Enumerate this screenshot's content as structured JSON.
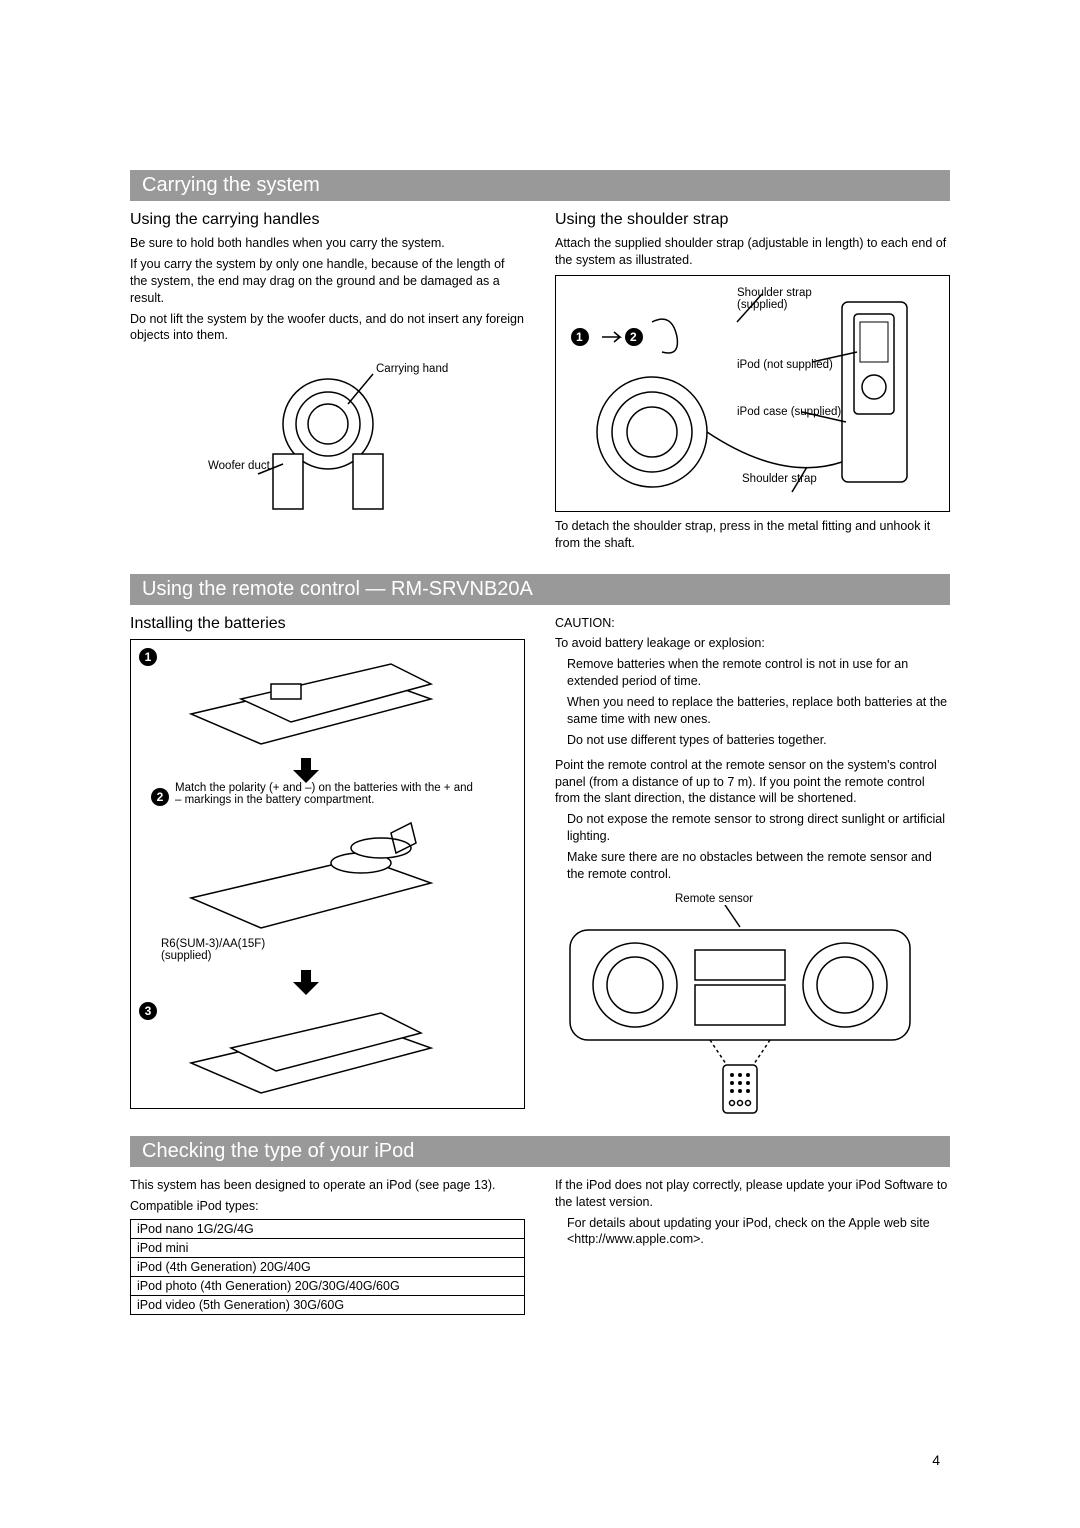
{
  "section1": {
    "header": "Carrying the system",
    "left": {
      "subhead": "Using the carrying handles",
      "p1": "Be sure to hold both handles when you carry the system.",
      "p2": "If you carry the system by only one handle, because of the length of the system, the end may drag on the ground and be damaged as a result.",
      "p3": "Do not lift the system by the woofer ducts, and do not insert any foreign objects into them.",
      "label_handle": "Carrying handle",
      "label_woofer": "Woofer duct"
    },
    "right": {
      "subhead": "Using the shoulder strap",
      "p1": "Attach the supplied shoulder strap (adjustable in length) to each end of the system as illustrated.",
      "label_strap1": "Shoulder strap (supplied)",
      "label_ipod": "iPod (not supplied)",
      "label_case": "iPod case (supplied)",
      "label_strap2": "Shoulder strap",
      "p2": "To detach the shoulder strap, press in the metal fitting and unhook it from the shaft."
    }
  },
  "section2": {
    "header": "Using the remote control — RM-SRVNB20A",
    "left": {
      "subhead": "Installing the batteries",
      "step2": "Match the polarity (+ and –) on the batteries with the + and – markings in the battery compartment.",
      "label_batt": "R6(SUM-3)/AA(15F) (supplied)"
    },
    "right": {
      "caution": "CAUTION:",
      "caution_intro": "To avoid battery leakage or explosion:",
      "c1": "Remove batteries when the remote control is not in use for an extended period of time.",
      "c2": "When you need to replace the batteries, replace both batteries at the same time with new ones.",
      "c3": "Do not use different types of batteries together.",
      "p1": "Point the remote control at the remote sensor on the system's control panel (from a distance of up to 7 m). If you point the remote control from the slant direction, the distance will be shortened.",
      "b1": "Do not expose the remote sensor to strong direct sunlight or artificial lighting.",
      "b2": "Make sure there are no obstacles between the remote sensor and the remote control.",
      "label_sensor": "Remote sensor"
    }
  },
  "section3": {
    "header": "Checking the type of your iPod",
    "left": {
      "p1": "This system has been designed to operate an iPod (see page 13).",
      "tablehead": "Compatible iPod types:",
      "rows": [
        "iPod nano 1G/2G/4G",
        "iPod mini",
        "iPod (4th Generation) 20G/40G",
        "iPod photo (4th Generation) 20G/30G/40G/60G",
        "iPod video (5th Generation) 30G/60G"
      ]
    },
    "right": {
      "p1": "If the iPod does not play correctly, please update your iPod Software to the latest version.",
      "b1": "For details about updating your iPod, check on the Apple web site <http://www.apple.com>."
    }
  },
  "page_number": "4"
}
